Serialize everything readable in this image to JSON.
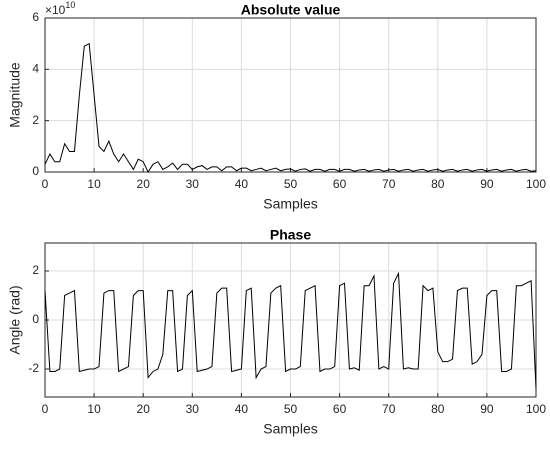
{
  "chart_data": [
    {
      "type": "line",
      "title": "Absolute value",
      "x_label": "Samples",
      "y_label": "Magnitude",
      "y_multiplier": "×10",
      "y_multiplier_power": "10",
      "grid": true,
      "xlim": [
        0,
        100
      ],
      "xticks": [
        0,
        10,
        20,
        30,
        40,
        50,
        60,
        70,
        80,
        90,
        100
      ],
      "ylim": [
        0,
        6
      ],
      "yticks": [
        0,
        2,
        4,
        6
      ],
      "x": [
        0,
        1,
        2,
        3,
        4,
        5,
        6,
        7,
        8,
        9,
        10,
        11,
        12,
        13,
        14,
        15,
        16,
        17,
        18,
        19,
        20,
        21,
        22,
        23,
        24,
        25,
        26,
        27,
        28,
        29,
        30,
        31,
        32,
        33,
        34,
        35,
        36,
        37,
        38,
        39,
        40,
        41,
        42,
        43,
        44,
        45,
        46,
        47,
        48,
        49,
        50,
        51,
        52,
        53,
        54,
        55,
        56,
        57,
        58,
        59,
        60,
        61,
        62,
        63,
        64,
        65,
        66,
        67,
        68,
        69,
        70,
        71,
        72,
        73,
        74,
        75,
        76,
        77,
        78,
        79,
        80,
        81,
        82,
        83,
        84,
        85,
        86,
        87,
        88,
        89,
        90,
        91,
        92,
        93,
        94,
        95,
        96,
        97,
        98,
        99,
        100
      ],
      "series": [
        {
          "color": "#000000",
          "values": [
            0.3,
            0.7,
            0.4,
            0.4,
            1.1,
            0.8,
            0.8,
            3.0,
            4.9,
            5.0,
            3.0,
            1.0,
            0.8,
            1.2,
            0.7,
            0.4,
            0.7,
            0.4,
            0.1,
            0.5,
            0.4,
            0.0,
            0.3,
            0.4,
            0.1,
            0.2,
            0.35,
            0.1,
            0.3,
            0.3,
            0.1,
            0.2,
            0.25,
            0.1,
            0.2,
            0.2,
            0.05,
            0.2,
            0.2,
            0.05,
            0.15,
            0.15,
            0.05,
            0.1,
            0.15,
            0.05,
            0.1,
            0.15,
            0.05,
            0.1,
            0.12,
            0.03,
            0.1,
            0.12,
            0.03,
            0.1,
            0.1,
            0.03,
            0.1,
            0.1,
            0.03,
            0.1,
            0.1,
            0.03,
            0.08,
            0.1,
            0.03,
            0.08,
            0.1,
            0.03,
            0.08,
            0.1,
            0.03,
            0.08,
            0.1,
            0.03,
            0.08,
            0.1,
            0.03,
            0.08,
            0.1,
            0.03,
            0.08,
            0.1,
            0.03,
            0.08,
            0.1,
            0.03,
            0.08,
            0.1,
            0.03,
            0.08,
            0.1,
            0.03,
            0.08,
            0.1,
            0.03,
            0.08,
            0.1,
            0.03,
            0.05
          ]
        }
      ]
    },
    {
      "type": "line",
      "title": "Phase",
      "x_label": "Samples",
      "y_label": "Angle (rad)",
      "grid": true,
      "xlim": [
        0,
        100
      ],
      "xticks": [
        0,
        10,
        20,
        30,
        40,
        50,
        60,
        70,
        80,
        90,
        100
      ],
      "ylim": [
        -3.1416,
        3.1416
      ],
      "yticks": [
        -2,
        0,
        2
      ],
      "x": [
        0,
        1,
        2,
        3,
        4,
        5,
        6,
        7,
        8,
        9,
        10,
        11,
        12,
        13,
        14,
        15,
        16,
        17,
        18,
        19,
        20,
        21,
        22,
        23,
        24,
        25,
        26,
        27,
        28,
        29,
        30,
        31,
        32,
        33,
        34,
        35,
        36,
        37,
        38,
        39,
        40,
        41,
        42,
        43,
        44,
        45,
        46,
        47,
        48,
        49,
        50,
        51,
        52,
        53,
        54,
        55,
        56,
        57,
        58,
        59,
        60,
        61,
        62,
        63,
        64,
        65,
        66,
        67,
        68,
        69,
        70,
        71,
        72,
        73,
        74,
        75,
        76,
        77,
        78,
        79,
        80,
        81,
        82,
        83,
        84,
        85,
        86,
        87,
        88,
        89,
        90,
        91,
        92,
        93,
        94,
        95,
        96,
        97,
        98,
        99,
        100
      ],
      "series": [
        {
          "color": "#000000",
          "values": [
            1.2,
            -2.1,
            -2.1,
            -2.0,
            1.0,
            1.1,
            1.2,
            -2.1,
            -2.05,
            -2.0,
            -2.0,
            -1.9,
            1.1,
            1.2,
            1.2,
            -2.1,
            -2.0,
            -1.9,
            1.0,
            1.2,
            1.2,
            -2.35,
            -2.1,
            -2.0,
            -1.4,
            1.2,
            1.2,
            -2.1,
            -2.0,
            1.0,
            1.2,
            -2.1,
            -2.05,
            -2.0,
            -1.9,
            1.1,
            1.3,
            1.3,
            -2.1,
            -2.05,
            -2.0,
            1.2,
            1.3,
            -2.35,
            -2.0,
            -1.9,
            1.1,
            1.3,
            1.4,
            -2.1,
            -2.0,
            -2.0,
            -1.9,
            1.2,
            1.3,
            1.4,
            -2.1,
            -2.0,
            -2.0,
            -1.9,
            1.4,
            1.5,
            -2.0,
            -1.95,
            -2.05,
            1.4,
            1.4,
            1.8,
            -2.0,
            -1.9,
            -2.0,
            1.5,
            1.9,
            -2.0,
            -1.95,
            -2.0,
            -2.0,
            1.4,
            1.2,
            1.3,
            -1.3,
            -1.7,
            -1.7,
            -1.6,
            1.2,
            1.3,
            1.3,
            -1.8,
            -1.7,
            -1.4,
            1.0,
            1.2,
            1.2,
            -2.1,
            -2.1,
            -2.0,
            1.4,
            1.4,
            1.5,
            1.6,
            -2.8
          ]
        }
      ]
    }
  ]
}
